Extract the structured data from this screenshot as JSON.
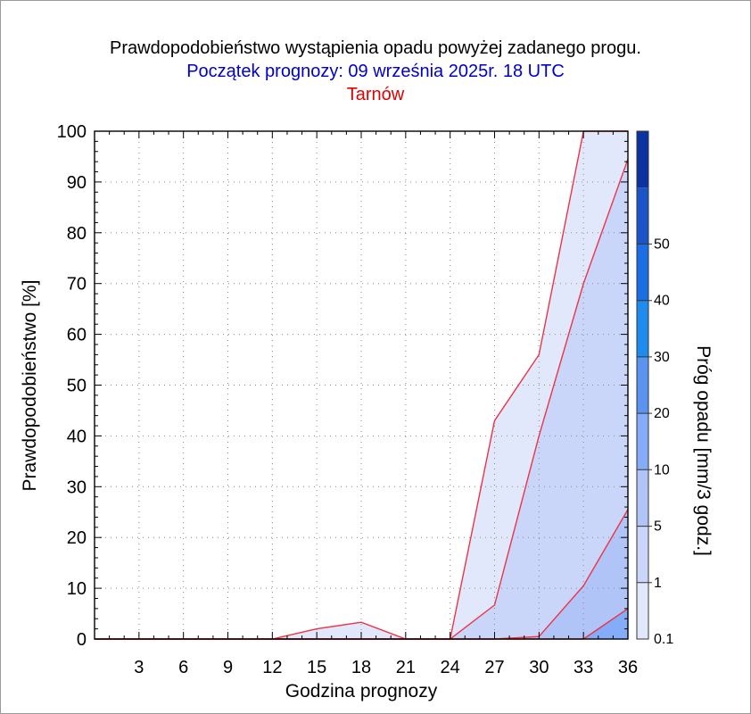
{
  "chart_data": {
    "type": "area",
    "title": "Prawdopodobieństwo wystąpienia opadu powyżej zadanego progu.",
    "subtitle": "Początek prognozy: 09 września 2025r. 18 UTC",
    "location": "Tarnów",
    "xlabel": "Godzina prognozy",
    "ylabel": "Prawdopodobieństwo [%]",
    "colorbar_label": "Próg opadu [mm/3 godz.]",
    "xlim": [
      0,
      36
    ],
    "ylim": [
      0,
      100
    ],
    "x_ticks": [
      3,
      6,
      9,
      12,
      15,
      18,
      21,
      24,
      27,
      30,
      33,
      36
    ],
    "y_ticks": [
      0,
      10,
      20,
      30,
      40,
      50,
      60,
      70,
      80,
      90,
      100
    ],
    "grid": true,
    "x": [
      0,
      3,
      6,
      9,
      12,
      15,
      18,
      21,
      24,
      27,
      30,
      33,
      36
    ],
    "series": [
      {
        "name": "0.1",
        "values": [
          0,
          0,
          0,
          0,
          0,
          2,
          3.3,
          0,
          0,
          43,
          56,
          100,
          100
        ]
      },
      {
        "name": "1",
        "values": [
          0,
          0,
          0,
          0,
          0,
          0,
          0,
          0,
          0,
          6.7,
          40,
          70,
          94.5
        ]
      },
      {
        "name": "5",
        "values": [
          0,
          0,
          0,
          0,
          0,
          0,
          0,
          0,
          0,
          0,
          0.5,
          10.5,
          25.5
        ]
      },
      {
        "name": "10",
        "values": [
          0,
          0,
          0,
          0,
          0,
          0,
          0,
          0,
          0,
          0,
          0,
          0,
          6
        ]
      }
    ],
    "colorbar": {
      "levels": [
        "0.1",
        "1",
        "5",
        "10",
        "20",
        "30",
        "40",
        "50"
      ],
      "colors": [
        "#e2e8fb",
        "#c9d6fa",
        "#b0c4f8",
        "#84acf8",
        "#5a94f0",
        "#1e8cee",
        "#1c6ee4",
        "#1a54c8",
        "#0a32a0"
      ]
    },
    "line_color": "#ee3344"
  }
}
